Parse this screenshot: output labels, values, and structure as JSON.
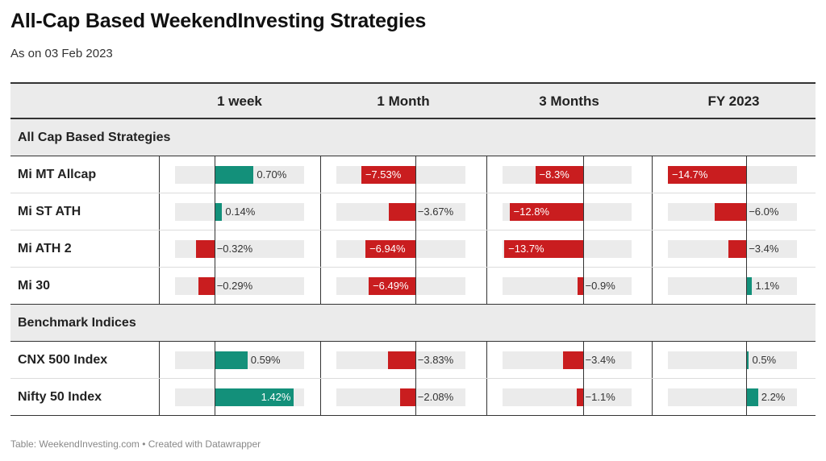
{
  "title": "All-Cap Based WeekendInvesting Strategies",
  "subtitle": "As on 03 Feb 2023",
  "footer": "Table: WeekendInvesting.com • Created with Datawrapper",
  "colors": {
    "positive": "#13907a",
    "negative": "#c91d1f",
    "track": "#ebebeb"
  },
  "columns": [
    "1 week",
    "1 Month",
    "3 Months",
    "FY 2023"
  ],
  "sections": [
    {
      "label": "All Cap Based Strategies",
      "rows": [
        {
          "name": "Mi MT Allcap",
          "labels": [
            "0.70%",
            "−7.53%",
            "−8.3%",
            "−14.7%"
          ]
        },
        {
          "name": "Mi ST ATH",
          "labels": [
            "0.14%",
            "−3.67%",
            "−12.8%",
            "−6.0%"
          ]
        },
        {
          "name": "Mi ATH 2",
          "labels": [
            "−0.32%",
            "−6.94%",
            "−13.7%",
            "−3.4%"
          ]
        },
        {
          "name": "Mi 30",
          "labels": [
            "−0.29%",
            "−6.49%",
            "−0.9%",
            "1.1%"
          ]
        }
      ]
    },
    {
      "label": "Benchmark Indices",
      "rows": [
        {
          "name": "CNX 500 Index",
          "labels": [
            "0.59%",
            "−3.83%",
            "−3.4%",
            "0.5%"
          ]
        },
        {
          "name": "Nifty 50 Index",
          "labels": [
            "1.42%",
            "−2.08%",
            "−1.1%",
            "2.2%"
          ]
        }
      ]
    }
  ],
  "chart_data": {
    "type": "table",
    "title": "All-Cap Based WeekendInvesting Strategies",
    "subtitle": "As on 03 Feb 2023",
    "categories": [
      "Mi MT Allcap",
      "Mi ST ATH",
      "Mi ATH 2",
      "Mi 30",
      "CNX 500 Index",
      "Nifty 50 Index"
    ],
    "series": [
      {
        "name": "1 week",
        "values": [
          0.7,
          0.14,
          -0.32,
          -0.29,
          0.59,
          1.42
        ]
      },
      {
        "name": "1 Month",
        "values": [
          -7.53,
          -3.67,
          -6.94,
          -6.49,
          -3.83,
          -2.08
        ]
      },
      {
        "name": "3 Months",
        "values": [
          -8.3,
          -12.8,
          -13.7,
          -0.9,
          -3.4,
          -1.1
        ]
      },
      {
        "name": "FY 2023",
        "values": [
          -14.7,
          -6.0,
          -3.4,
          1.1,
          0.5,
          2.2
        ]
      }
    ],
    "column_ranges": [
      [
        -0.7,
        1.6
      ],
      [
        -11,
        7
      ],
      [
        -14,
        8.5
      ],
      [
        -14.7,
        9.5
      ]
    ]
  }
}
